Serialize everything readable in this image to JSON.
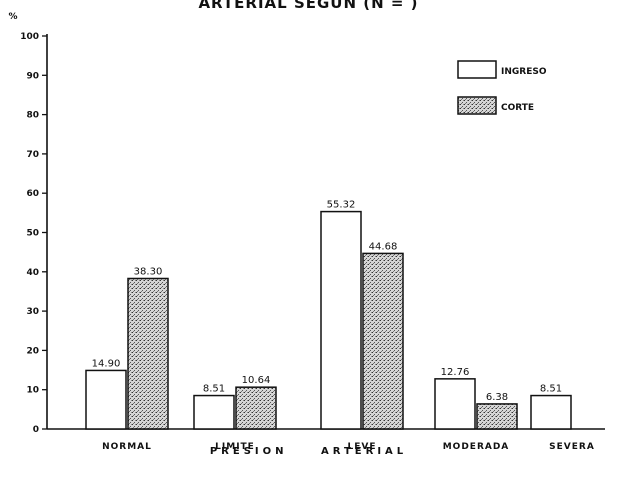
{
  "chart_data": {
    "type": "bar",
    "title": "ARTERIAL SEGÚN (N = )",
    "ylabel": "%",
    "xlabel": "PRESION ARTERIAL",
    "ylim": [
      0,
      100
    ],
    "yticks": [
      0,
      10,
      20,
      30,
      40,
      50,
      60,
      70,
      80,
      90,
      100
    ],
    "categories": [
      "NORMAL",
      "LIMITE",
      "LEVE",
      "MODERADA",
      "SEVERA"
    ],
    "series": [
      {
        "name": "INGRESO",
        "values": [
          14.9,
          8.51,
          55.32,
          12.76,
          8.51
        ],
        "labels": [
          "14.90",
          "8.51",
          "55.32",
          "12.76",
          "8.51"
        ]
      },
      {
        "name": "CORTE",
        "values": [
          38.3,
          10.64,
          44.68,
          6.38,
          null
        ],
        "labels": [
          "38.30",
          "10.64",
          "44.68",
          "6.38",
          ""
        ]
      }
    ],
    "legend_position": "top-right",
    "grid": false,
    "colors": {
      "ingreso": "#ffffff",
      "corte": "#c4c4c4",
      "ink": "#111111"
    }
  }
}
